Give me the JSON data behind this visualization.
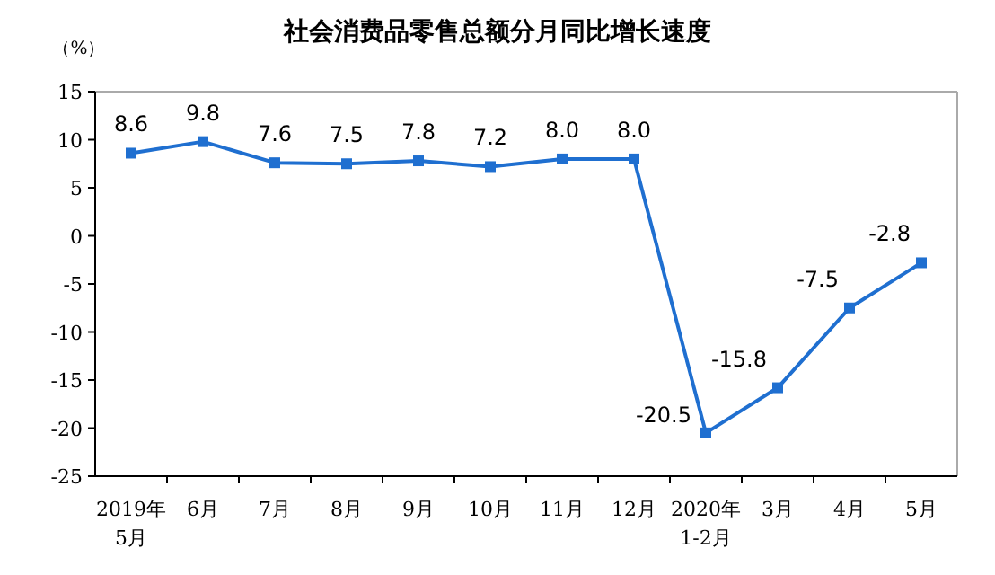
{
  "chart_data": {
    "type": "line",
    "title": "社会消费品零售总额分月同比增长速度",
    "ylabel": "（%）",
    "categories": [
      "2019年\n5月",
      "6月",
      "7月",
      "8月",
      "9月",
      "10月",
      "11月",
      "12月",
      "2020年\n1-2月",
      "3月",
      "4月",
      "5月"
    ],
    "series": [
      {
        "color": "#1f6fd0",
        "values": [
          8.6,
          9.8,
          7.6,
          7.5,
          7.8,
          7.2,
          8.0,
          8.0,
          -20.5,
          -15.8,
          -7.5,
          -2.8
        ],
        "value_labels": [
          "8.6",
          "9.8",
          "7.6",
          "7.5",
          "7.8",
          "7.2",
          "8.0",
          "8.0",
          "-20.5",
          "-15.8",
          "-7.5",
          "-2.8"
        ]
      }
    ],
    "ylim": [
      -25,
      15
    ],
    "yticks": [
      -25,
      -20,
      -15,
      -10,
      -5,
      0,
      5,
      10,
      15
    ],
    "grid": false,
    "marker": "square",
    "line_style": "solid"
  }
}
